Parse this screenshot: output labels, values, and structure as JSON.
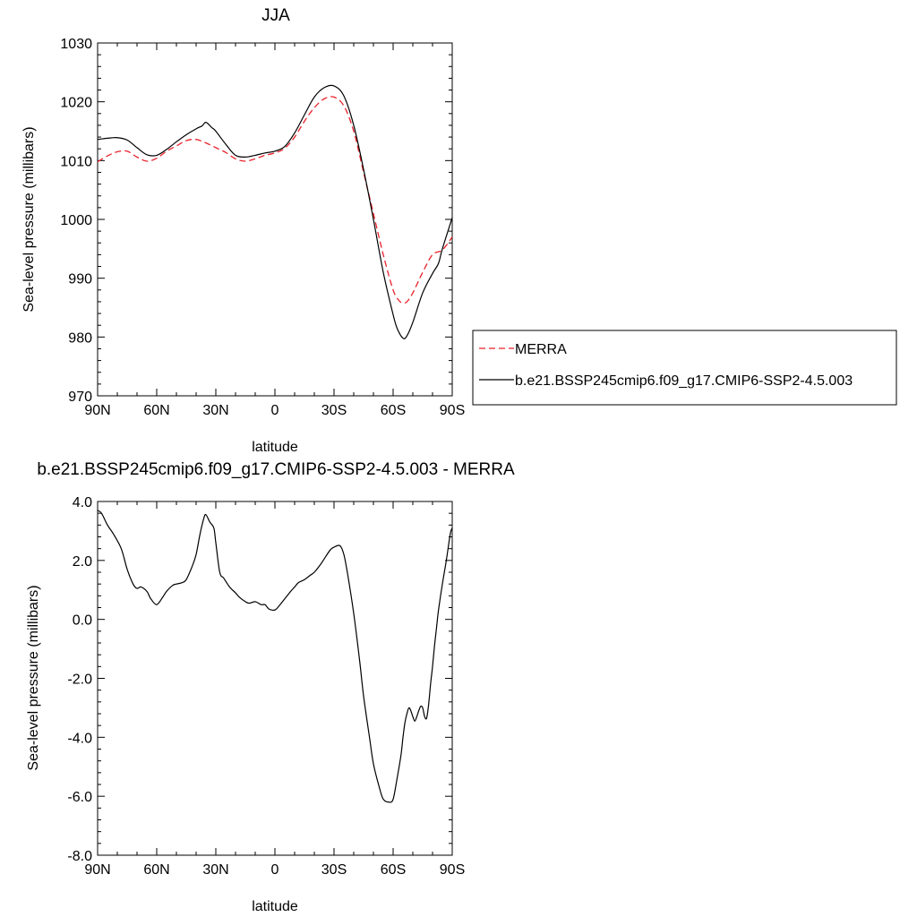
{
  "chart_data": [
    {
      "type": "line",
      "title": "JJA",
      "xlabel": "latitude",
      "ylabel": "Sea-level pressure (millibars)",
      "xlim": [
        90,
        -90
      ],
      "ylim": [
        970,
        1030
      ],
      "xticks": [
        90,
        60,
        30,
        0,
        -30,
        -60,
        -90
      ],
      "xtick_labels": [
        "90N",
        "60N",
        "30N",
        "0",
        "30S",
        "60S",
        "90S"
      ],
      "yticks": [
        970,
        980,
        990,
        1000,
        1010,
        1020,
        1030
      ],
      "ytick_labels": [
        "970",
        "980",
        "990",
        "1000",
        "1010",
        "1020",
        "1030"
      ],
      "legend_position": "right",
      "series": [
        {
          "name": "MERRA",
          "color": "#e8222b",
          "dash": "dashed",
          "x": [
            90,
            85,
            80,
            75,
            70,
            65,
            60,
            55,
            50,
            45,
            40,
            35,
            30,
            25,
            20,
            15,
            10,
            5,
            0,
            -5,
            -10,
            -15,
            -20,
            -25,
            -30,
            -35,
            -40,
            -45,
            -50,
            -55,
            -60,
            -63,
            -65,
            -67,
            -70,
            -75,
            -80,
            -85,
            -90
          ],
          "y": [
            1009.8,
            1010.8,
            1011.5,
            1011.6,
            1010.6,
            1009.9,
            1010.4,
            1011.6,
            1012.5,
            1013.4,
            1013.6,
            1013.0,
            1012.2,
            1011.4,
            1010.3,
            1009.9,
            1010.3,
            1010.9,
            1011.3,
            1012.1,
            1014.0,
            1016.7,
            1019.0,
            1020.5,
            1020.8,
            1019.3,
            1015.0,
            1008.0,
            1001.0,
            994.0,
            988.0,
            986.2,
            985.8,
            986.0,
            987.5,
            991.0,
            994.0,
            994.8,
            997.0
          ]
        },
        {
          "name": "b.e21.BSSP245cmip6.f09_g17.CMIP6-SSP2-4.5.003",
          "color": "#000000",
          "dash": "solid",
          "x": [
            90,
            85,
            80,
            75,
            70,
            65,
            60,
            55,
            50,
            45,
            40,
            37,
            35,
            32,
            30,
            25,
            20,
            15,
            10,
            5,
            0,
            -5,
            -10,
            -15,
            -20,
            -25,
            -30,
            -35,
            -40,
            -45,
            -50,
            -55,
            -60,
            -62,
            -65,
            -67,
            -70,
            -75,
            -80,
            -83,
            -85,
            -90
          ],
          "y": [
            1013.6,
            1013.8,
            1013.9,
            1013.5,
            1012.2,
            1011.0,
            1010.9,
            1011.9,
            1013.2,
            1014.4,
            1015.4,
            1015.9,
            1016.5,
            1015.6,
            1015.0,
            1012.8,
            1010.9,
            1010.6,
            1010.9,
            1011.3,
            1011.6,
            1012.4,
            1014.7,
            1017.8,
            1020.8,
            1022.4,
            1022.7,
            1021.0,
            1016.0,
            1008.5,
            1000.0,
            991.0,
            983.8,
            981.5,
            979.8,
            980.2,
            982.5,
            987.5,
            990.8,
            992.5,
            995.0,
            1000.3
          ]
        }
      ]
    },
    {
      "type": "line",
      "title": "b.e21.BSSP245cmip6.f09_g17.CMIP6-SSP2-4.5.003 - MERRA",
      "xlabel": "latitude",
      "ylabel": "Sea-level pressure (millibars)",
      "xlim": [
        90,
        -90
      ],
      "ylim": [
        -8.0,
        4.0
      ],
      "xticks": [
        90,
        60,
        30,
        0,
        -30,
        -60,
        -90
      ],
      "xtick_labels": [
        "90N",
        "60N",
        "30N",
        "0",
        "30S",
        "60S",
        "90S"
      ],
      "yticks": [
        -8,
        -6,
        -4,
        -2,
        0,
        2,
        4
      ],
      "ytick_labels": [
        "-8.0",
        "-6.0",
        "-4.0",
        "-2.0",
        "0.0",
        "2.0",
        "4.0"
      ],
      "series": [
        {
          "color": "#000000",
          "dash": "solid",
          "x": [
            90,
            88,
            85,
            82,
            78,
            75,
            72,
            70,
            68,
            65,
            63,
            60,
            57,
            55,
            52,
            50,
            47,
            45,
            42,
            40,
            38,
            36,
            35,
            33,
            31,
            30,
            28,
            26,
            23,
            20,
            18,
            15,
            13,
            10,
            7,
            5,
            3,
            0,
            -2,
            -5,
            -8,
            -10,
            -12,
            -15,
            -18,
            -20,
            -23,
            -25,
            -28,
            -30,
            -33,
            -35,
            -37,
            -40,
            -43,
            -45,
            -48,
            -50,
            -53,
            -55,
            -58,
            -60,
            -62,
            -64,
            -65,
            -66,
            -67,
            -68,
            -69,
            -70,
            -71,
            -72,
            -73,
            -74,
            -75,
            -76,
            -77,
            -78,
            -79,
            -80,
            -81,
            -82,
            -83,
            -85,
            -87,
            -89,
            -90
          ],
          "y": [
            3.7,
            3.6,
            3.2,
            2.9,
            2.4,
            1.7,
            1.2,
            1.05,
            1.1,
            0.95,
            0.7,
            0.5,
            0.75,
            0.95,
            1.15,
            1.2,
            1.25,
            1.35,
            1.8,
            2.2,
            2.9,
            3.45,
            3.55,
            3.3,
            3.1,
            2.6,
            1.6,
            1.4,
            1.1,
            0.9,
            0.75,
            0.6,
            0.55,
            0.6,
            0.5,
            0.5,
            0.35,
            0.32,
            0.45,
            0.7,
            0.95,
            1.1,
            1.25,
            1.35,
            1.5,
            1.6,
            1.85,
            2.05,
            2.35,
            2.45,
            2.5,
            2.2,
            1.5,
            0.2,
            -1.4,
            -2.6,
            -4.0,
            -4.9,
            -5.7,
            -6.1,
            -6.2,
            -6.1,
            -5.4,
            -4.6,
            -4.0,
            -3.5,
            -3.2,
            -3.0,
            -3.1,
            -3.3,
            -3.45,
            -3.3,
            -3.1,
            -2.95,
            -3.0,
            -3.3,
            -3.35,
            -2.9,
            -2.2,
            -1.6,
            -0.9,
            -0.3,
            0.3,
            1.2,
            2.0,
            2.9,
            3.1
          ]
        }
      ]
    }
  ]
}
